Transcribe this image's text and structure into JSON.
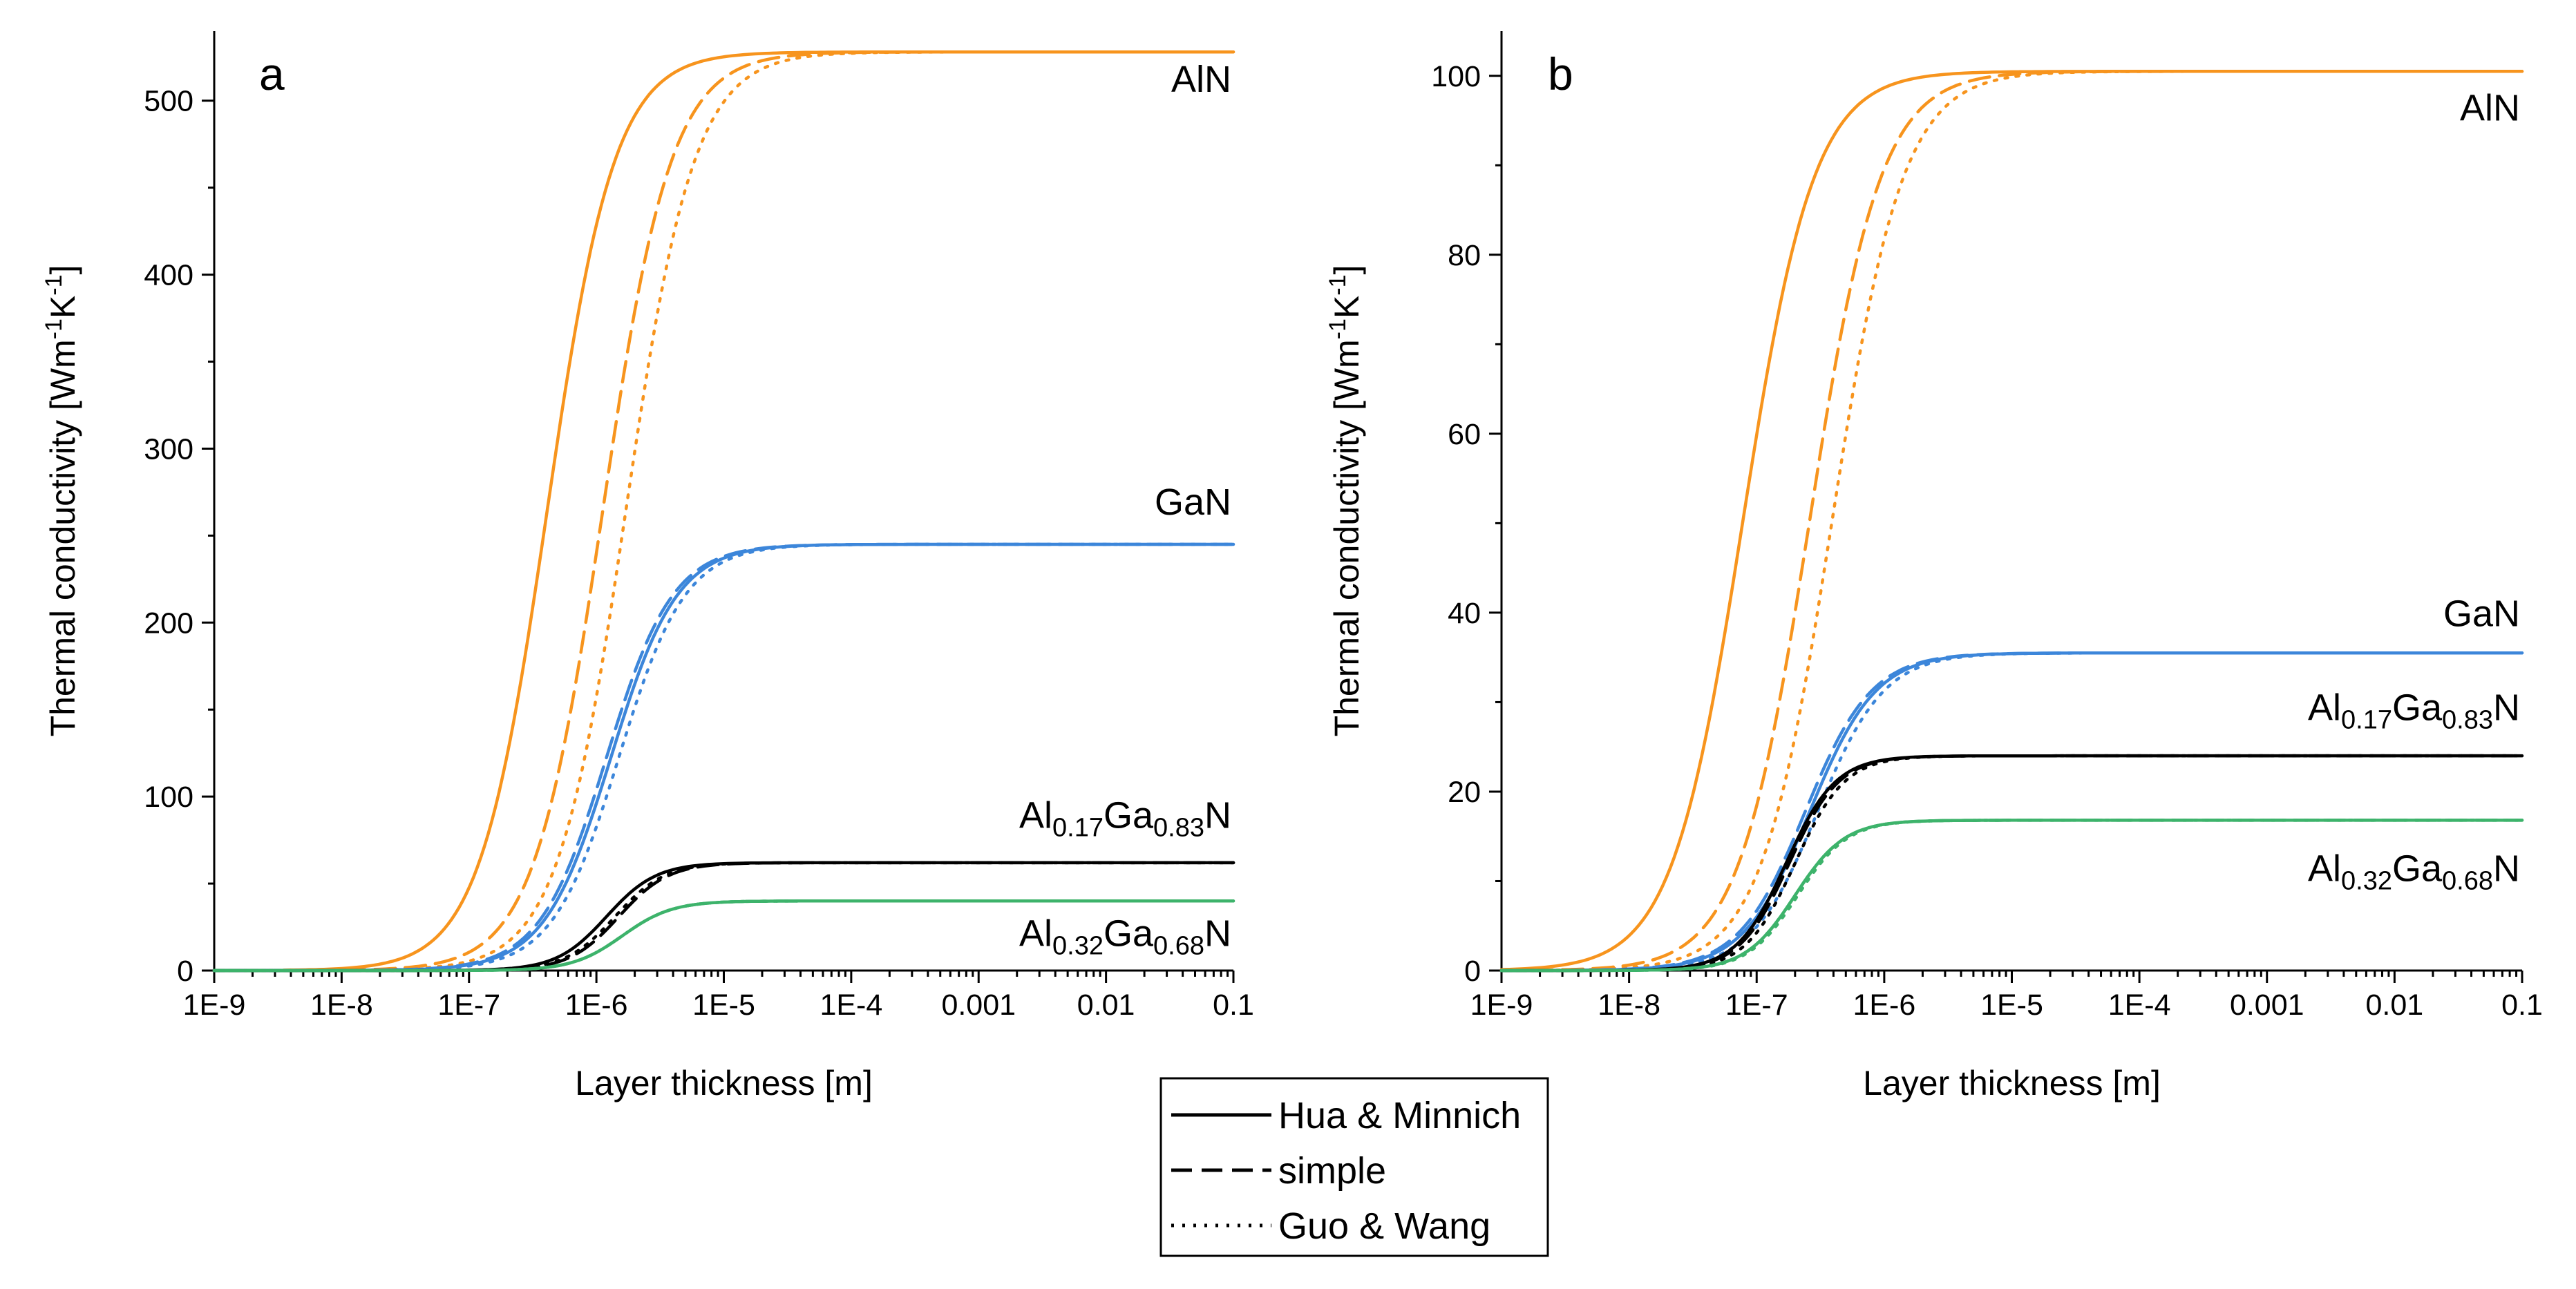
{
  "chart_data": [
    {
      "type": "line",
      "panel": "a",
      "xscale": "log",
      "xlabel": "Layer thickness [m]",
      "ylabel_parts": [
        "Thermal conductivity [Wm",
        "-1",
        "K",
        "-1",
        "]"
      ],
      "xlim": [
        1e-09,
        0.1
      ],
      "ylim": [
        0,
        540
      ],
      "xticks": [
        1e-09,
        1e-08,
        1e-07,
        1e-06,
        1e-05,
        0.0001,
        0.001,
        0.01,
        0.1
      ],
      "xtick_labels": [
        "1E-9",
        "1E-8",
        "1E-7",
        "1E-6",
        "1E-5",
        "1E-4",
        "0.001",
        "0.01",
        "0.1"
      ],
      "yticks": [
        0,
        100,
        200,
        300,
        400,
        500
      ],
      "ytick_labels": [
        "0",
        "100",
        "200",
        "300",
        "400",
        "500"
      ],
      "series": [
        {
          "material": "AlN",
          "color": "#F7941D",
          "kmax": 528,
          "starts": {
            "hua": 3.5e-09,
            "simple": 3.5e-09,
            "guo": 3.5e-09
          },
          "x0": {
            "hua": 4.1e-07,
            "simple": 1.12e-06,
            "guo": 1.7e-06
          },
          "slope": {
            "hua": 0.61,
            "simple": 0.62,
            "guo": 0.62
          }
        },
        {
          "material": "GaN",
          "color": "#3C86DA",
          "kmax": 245,
          "starts": {
            "hua": 1e-09,
            "simple": 1e-09,
            "guo": 1e-09
          },
          "x0": {
            "hua": 1.3e-06,
            "simple": 1.2e-06,
            "guo": 1.5e-06
          },
          "slope": {
            "hua": 0.6,
            "simple": 0.6,
            "guo": 0.6
          }
        },
        {
          "material": "Al0.17Ga0.83N",
          "color": "#000000",
          "kmax": 62,
          "starts": {
            "hua": 1e-09,
            "simple": 1e-09,
            "guo": 1e-09
          },
          "x0": {
            "hua": 1.2e-06,
            "simple": 1.5e-06,
            "guo": 1.4e-06
          },
          "slope": {
            "hua": 0.45,
            "simple": 0.45,
            "guo": 0.45
          }
        },
        {
          "material": "Al0.32Ga0.68N",
          "color": "#3DB36B",
          "kmax": 40,
          "starts": {
            "hua": 1e-09,
            "simple": 1e-09,
            "guo": 1e-09
          },
          "x0": {
            "hua": 1.6e-06,
            "simple": 1.6e-06,
            "guo": 1.6e-06
          },
          "slope": {
            "hua": 0.45,
            "simple": 0.45,
            "guo": 0.45
          }
        }
      ],
      "annotations": [
        {
          "material": "AlN",
          "main": "AlN",
          "y": 505
        },
        {
          "material": "GaN",
          "main": "GaN",
          "y": 262
        },
        {
          "material": "Al0.17Ga0.83N",
          "parts": [
            "Al",
            "0.17",
            "Ga",
            "0.83",
            "N"
          ],
          "y": 82
        },
        {
          "material": "Al0.32Ga0.68N",
          "parts": [
            "Al",
            "0.32",
            "Ga",
            "0.68",
            "N"
          ],
          "y": 14
        }
      ]
    },
    {
      "type": "line",
      "panel": "b",
      "xscale": "log",
      "xlabel": "Layer thickness [m]",
      "ylabel_parts": [
        "Thermal conductivity [Wm",
        "-1",
        "K",
        "-1",
        "]"
      ],
      "xlim": [
        1e-09,
        0.1
      ],
      "ylim": [
        0,
        105
      ],
      "xticks": [
        1e-09,
        1e-08,
        1e-07,
        1e-06,
        1e-05,
        0.0001,
        0.001,
        0.01,
        0.1
      ],
      "xtick_labels": [
        "1E-9",
        "1E-8",
        "1E-7",
        "1E-6",
        "1E-5",
        "1E-4",
        "0.001",
        "0.01",
        "0.1"
      ],
      "yticks": [
        0,
        20,
        40,
        60,
        80,
        100
      ],
      "ytick_labels": [
        "0",
        "20",
        "40",
        "60",
        "80",
        "100"
      ],
      "series": [
        {
          "material": "AlN",
          "color": "#F7941D",
          "kmax": 100.5,
          "starts": {
            "hua": 1e-09,
            "simple": 1e-09,
            "guo": 1e-09
          },
          "x0": {
            "hua": 7.8e-08,
            "simple": 2.6e-07,
            "guo": 3.9e-07
          },
          "slope": {
            "hua": 0.64,
            "simple": 0.64,
            "guo": 0.64
          }
        },
        {
          "material": "GaN",
          "color": "#3C86DA",
          "kmax": 35.5,
          "starts": {
            "hua": 1e-09,
            "simple": 1e-09,
            "guo": 1e-09
          },
          "x0": {
            "hua": 2.6e-07,
            "simple": 2.4e-07,
            "guo": 3e-07
          },
          "slope": {
            "hua": 0.6,
            "simple": 0.6,
            "guo": 0.6
          }
        },
        {
          "material": "Al0.17Ga0.83N",
          "color": "#000000",
          "kmax": 24,
          "starts": {
            "hua": 1e-09,
            "simple": 1e-09,
            "guo": 1e-09
          },
          "x0": {
            "hua": 1.7e-07,
            "simple": 1.8e-07,
            "guo": 2e-07
          },
          "slope": {
            "hua": 0.45,
            "simple": 0.45,
            "guo": 0.45
          }
        },
        {
          "material": "Al0.32Ga0.68N",
          "color": "#3DB36B",
          "kmax": 16.8,
          "starts": {
            "hua": 1e-09,
            "simple": 1e-09,
            "guo": 1e-09
          },
          "x0": {
            "hua": 2e-07,
            "simple": 2e-07,
            "guo": 2.1e-07
          },
          "slope": {
            "hua": 0.45,
            "simple": 0.45,
            "guo": 0.45
          }
        }
      ],
      "annotations": [
        {
          "material": "AlN",
          "main": "AlN",
          "y": 95
        },
        {
          "material": "GaN",
          "main": "GaN",
          "y": 38.5
        },
        {
          "material": "Al0.17Ga0.83N",
          "parts": [
            "Al",
            "0.17",
            "Ga",
            "0.83",
            "N"
          ],
          "y": 28
        },
        {
          "material": "Al0.32Ga0.68N",
          "parts": [
            "Al",
            "0.32",
            "Ga",
            "0.68",
            "N"
          ],
          "y": 10
        }
      ]
    }
  ],
  "legend": {
    "items": [
      {
        "model": "hua",
        "label": "Hua & Minnich",
        "style": "solid"
      },
      {
        "model": "simple",
        "label": "simple",
        "style": "dashed"
      },
      {
        "model": "guo",
        "label": "Guo & Wang",
        "style": "dotted"
      }
    ],
    "placement": "bottom-center"
  }
}
